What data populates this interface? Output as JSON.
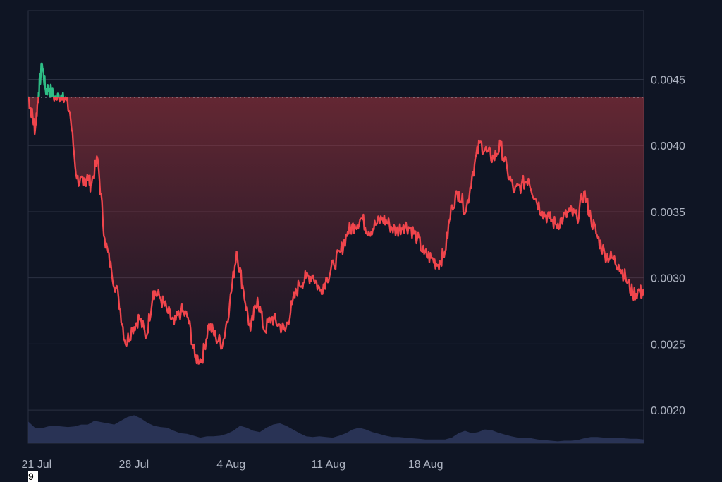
{
  "chart_data": {
    "type": "line",
    "title": "",
    "xlabel": "",
    "ylabel": "",
    "x_ticks": [
      "21 Jul",
      "28 Jul",
      "4 Aug",
      "11 Aug",
      "18 Aug"
    ],
    "y_ticks": [
      "0.0045",
      "0.0040",
      "0.0035",
      "0.0030",
      "0.0025",
      "0.0020"
    ],
    "ylim": [
      0.00175,
      0.00502
    ],
    "grid": "horizontal",
    "baseline": 0.004365,
    "colors": {
      "above": "#2ebd85",
      "below": "#f0454c",
      "volume": "#2b3558",
      "grid": "#2b3142",
      "baseline": "#c8ccd4"
    },
    "x_days": [
      0,
      0.25,
      0.5,
      0.75,
      1,
      1.25,
      1.5,
      2,
      2.5,
      3,
      3.5,
      4,
      4.25,
      4.5,
      5,
      5.5,
      6,
      6.5,
      7,
      7.5,
      8,
      8.5,
      9,
      9.5,
      10,
      10.5,
      11,
      11.5,
      12,
      12.5,
      13,
      13.5,
      14,
      14.5,
      15,
      15.5,
      16,
      16.5,
      17,
      17.5,
      18,
      18.5,
      19,
      19.5,
      20,
      20.5,
      21,
      21.5,
      22,
      22.5,
      23,
      23.5,
      24,
      24.5,
      25,
      25.5,
      26,
      26.5,
      27,
      27.5,
      28,
      28.5,
      29,
      29.5,
      30,
      30.5,
      31,
      31.5,
      32,
      32.5,
      33,
      33.5,
      34,
      34.5,
      35,
      35.5,
      36,
      36.5,
      37,
      37.5,
      38,
      38.5,
      39,
      39.5,
      40,
      40.5,
      41,
      41.5,
      42,
      42.5,
      43,
      43.5,
      44,
      44.3
    ],
    "prices": [
      0.00437,
      0.00425,
      0.00412,
      0.0044,
      0.00462,
      0.00442,
      0.00443,
      0.00435,
      0.0044,
      0.00425,
      0.00375,
      0.0037,
      0.00378,
      0.0037,
      0.0039,
      0.0033,
      0.00305,
      0.00285,
      0.0025,
      0.00262,
      0.0027,
      0.00255,
      0.0029,
      0.00285,
      0.00275,
      0.00265,
      0.00275,
      0.0027,
      0.0024,
      0.00238,
      0.00265,
      0.00255,
      0.0025,
      0.0028,
      0.0032,
      0.0029,
      0.0026,
      0.00285,
      0.0026,
      0.0027,
      0.00265,
      0.0026,
      0.0028,
      0.00295,
      0.003,
      0.00302,
      0.0029,
      0.003,
      0.0031,
      0.0032,
      0.00335,
      0.0034,
      0.00345,
      0.00335,
      0.0034,
      0.00345,
      0.0034,
      0.00335,
      0.0034,
      0.00338,
      0.0033,
      0.00318,
      0.00315,
      0.0031,
      0.0032,
      0.00355,
      0.00365,
      0.0035,
      0.0038,
      0.00402,
      0.00395,
      0.0039,
      0.004,
      0.0038,
      0.00365,
      0.0037,
      0.00375,
      0.0036,
      0.0035,
      0.00345,
      0.0034,
      0.00345,
      0.0035,
      0.00345,
      0.00365,
      0.00345,
      0.0033,
      0.00318,
      0.00315,
      0.0031,
      0.003,
      0.00288,
      0.0029,
      0.00287
    ],
    "volume": [
      0.35,
      0.25,
      0.24,
      0.27,
      0.28,
      0.27,
      0.26,
      0.27,
      0.3,
      0.3,
      0.36,
      0.34,
      0.32,
      0.3,
      0.36,
      0.42,
      0.45,
      0.4,
      0.33,
      0.28,
      0.26,
      0.25,
      0.2,
      0.16,
      0.15,
      0.12,
      0.09,
      0.11,
      0.11,
      0.12,
      0.15,
      0.2,
      0.28,
      0.25,
      0.2,
      0.18,
      0.25,
      0.3,
      0.32,
      0.28,
      0.22,
      0.16,
      0.11,
      0.1,
      0.11,
      0.1,
      0.09,
      0.12,
      0.16,
      0.22,
      0.25,
      0.22,
      0.18,
      0.15,
      0.12,
      0.1,
      0.1,
      0.09,
      0.08,
      0.07,
      0.06,
      0.06,
      0.06,
      0.06,
      0.09,
      0.16,
      0.2,
      0.16,
      0.18,
      0.22,
      0.21,
      0.17,
      0.14,
      0.11,
      0.09,
      0.08,
      0.08,
      0.06,
      0.05,
      0.04,
      0.03,
      0.04,
      0.04,
      0.05,
      0.08,
      0.1,
      0.1,
      0.09,
      0.08,
      0.08,
      0.08,
      0.07,
      0.07,
      0.06
    ]
  },
  "overlay": {
    "stray_label": "9"
  }
}
